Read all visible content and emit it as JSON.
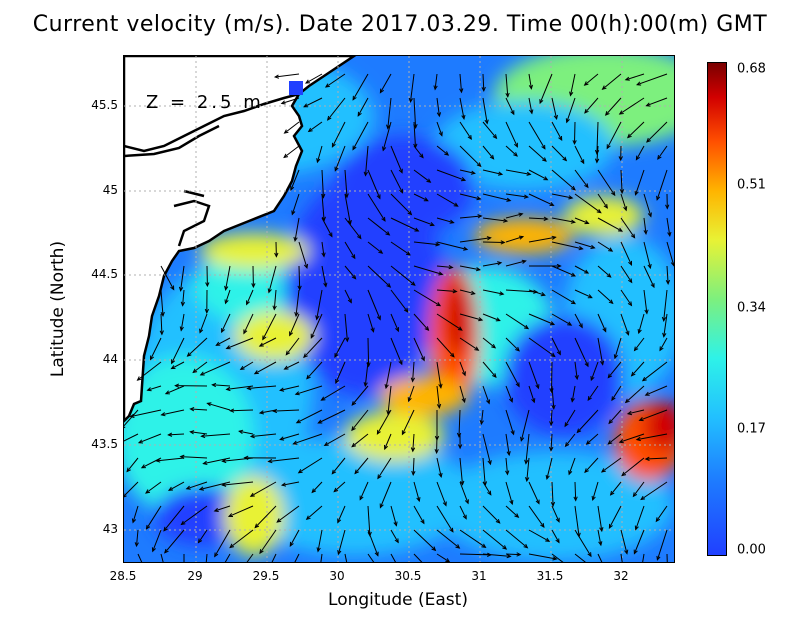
{
  "title": "Current velocity (m/s). Date 2017.03.29. Time 00(h):00(m) GMT",
  "depth_label": "Z = 2.5 m",
  "axes": {
    "xlabel": "Longitude (East)",
    "ylabel": "Latitude (North)",
    "xticks": [
      "28.5",
      "29",
      "29.5",
      "30",
      "30.5",
      "31",
      "31.5",
      "32"
    ],
    "yticks": [
      "45.5",
      "45",
      "44.5",
      "44",
      "43.5",
      "43"
    ]
  },
  "colorbar": {
    "ticks": [
      "0.68",
      "0.51",
      "0.34",
      "0.17",
      "0.00"
    ],
    "colors": [
      "#2040ff",
      "#1e7bff",
      "#22c0ff",
      "#2ef2e8",
      "#7df07e",
      "#e8f235",
      "#ffb400",
      "#ff5000",
      "#d20000",
      "#7a0000"
    ]
  },
  "map_colors": {
    "land": "#ffffff",
    "coast": "#000000",
    "arrow": "#000000"
  }
}
